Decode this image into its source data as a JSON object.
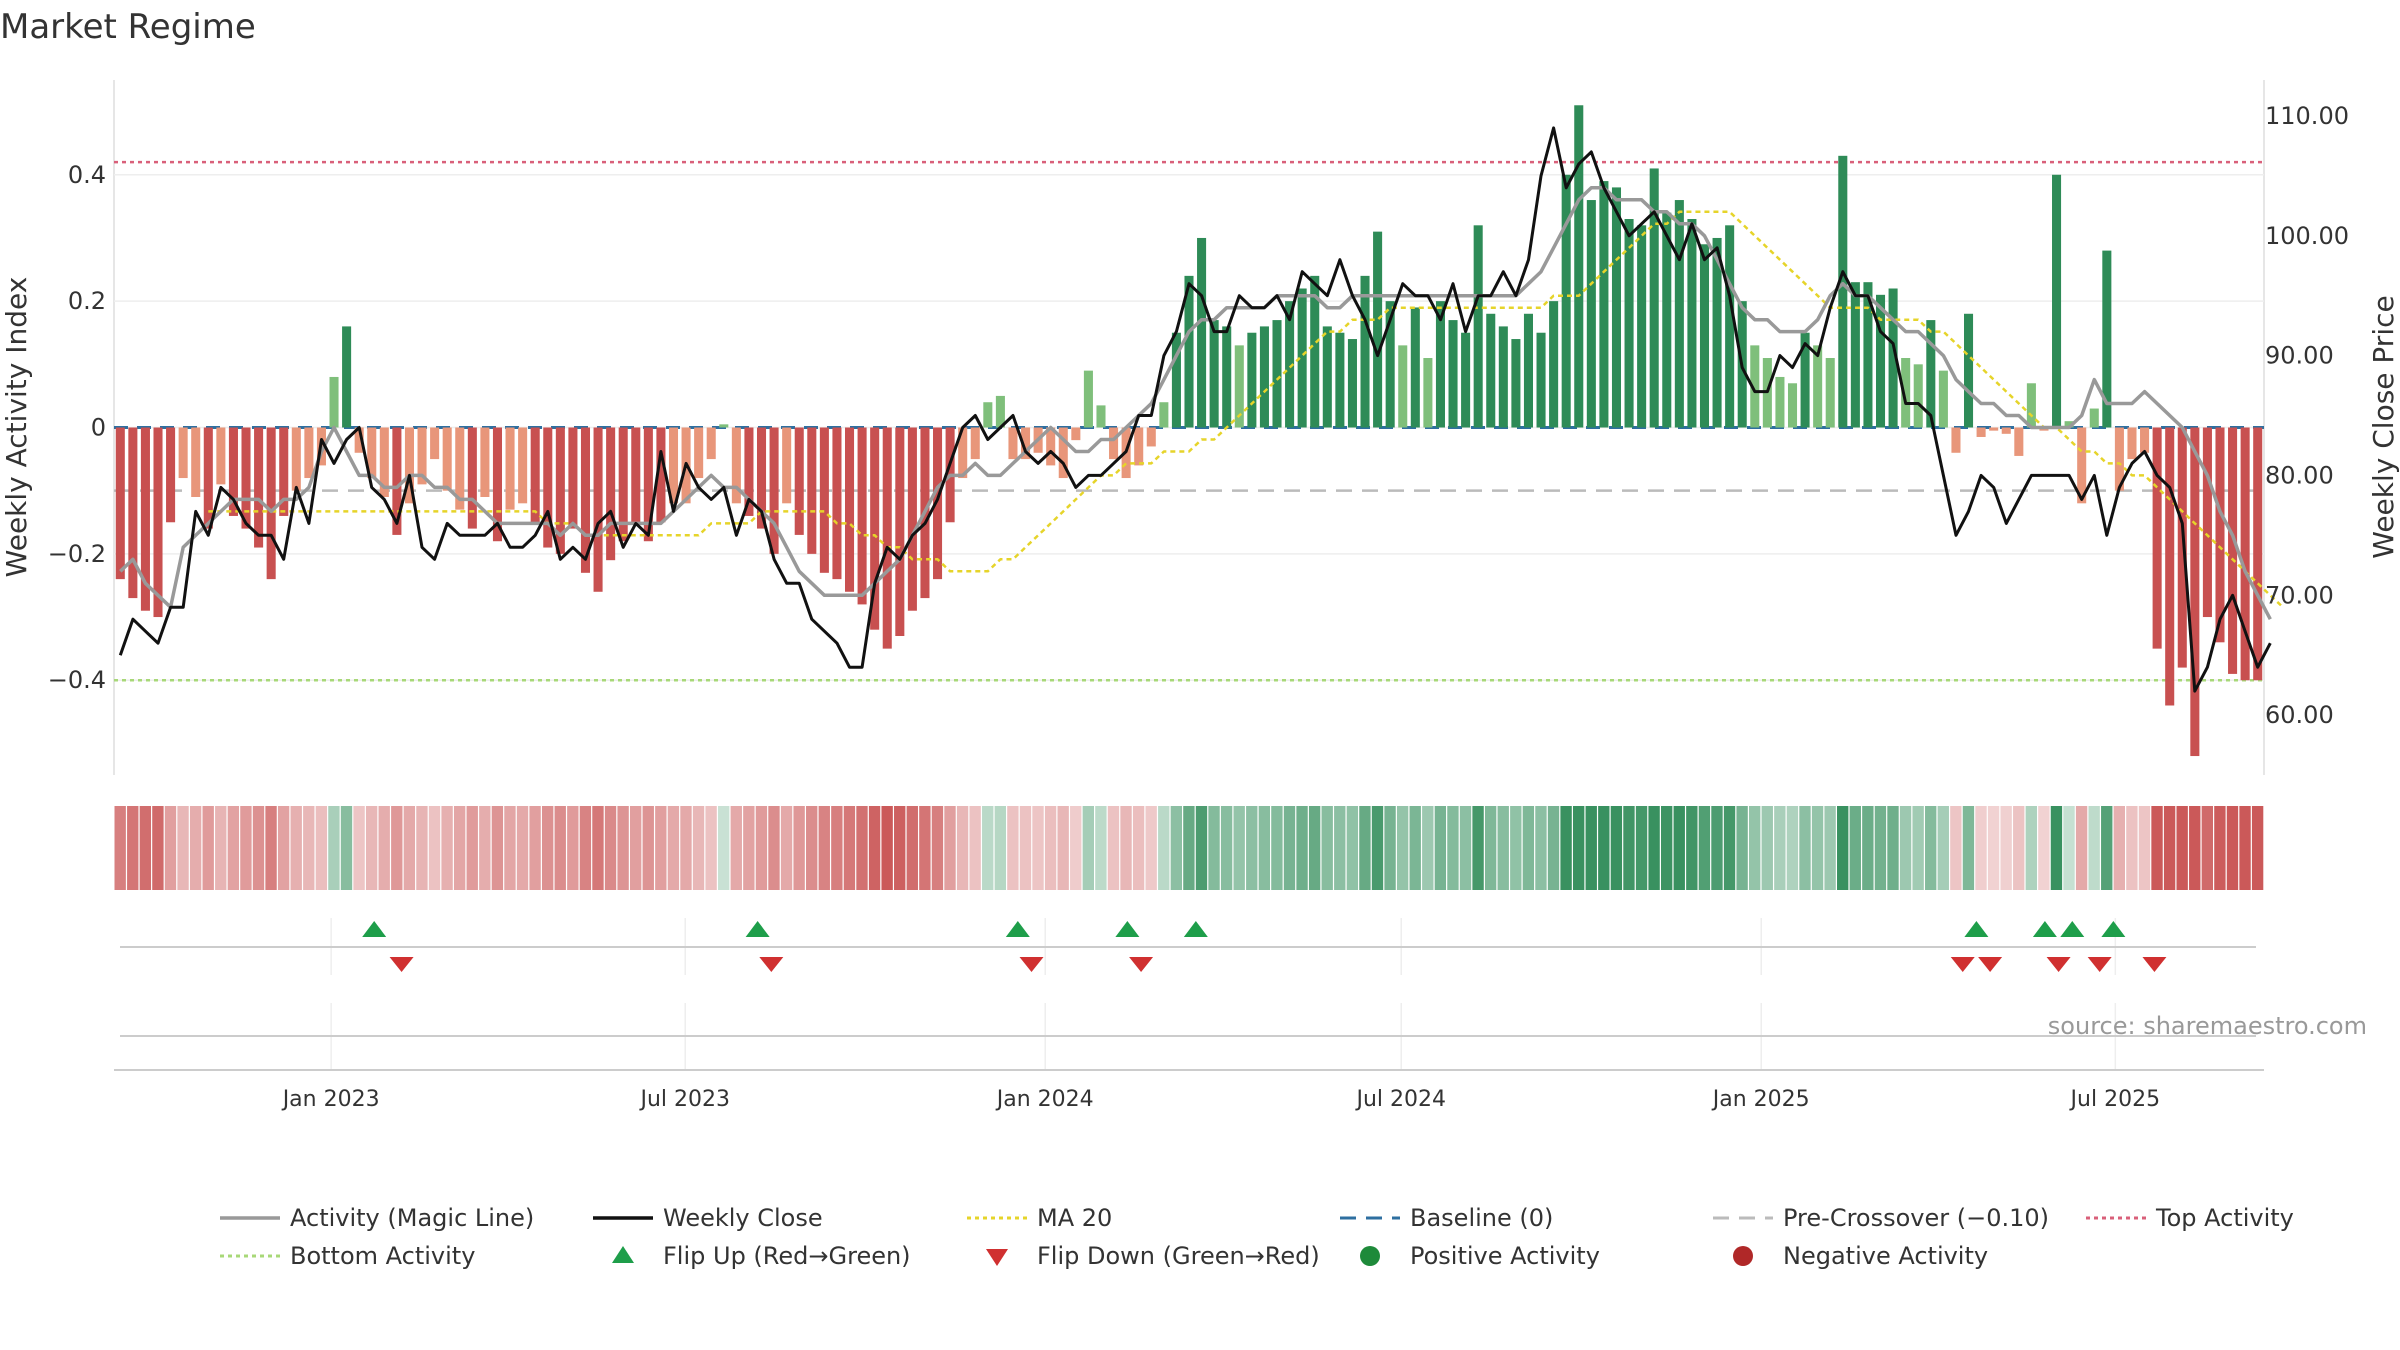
{
  "page": {
    "title": "Market Regime",
    "source": "source: sharemaestro.com"
  },
  "colors": {
    "pos_dark": "#2e8b57",
    "pos_light": "#7fbf7b",
    "neg_dark": "#c85050",
    "neg_light": "#e8967a",
    "magic_line": "#999999",
    "close_line": "#111111",
    "ma20": "#e6d42a",
    "baseline": "#2e6fa0",
    "pre_crossover": "#bbbbbb",
    "top_activity": "#d9607a",
    "bottom_activity": "#a8d878",
    "flip_up": "#1e9e4a",
    "flip_down": "#d03030",
    "positive_dot": "#1e8a3a",
    "negative_dot": "#b02828"
  },
  "legend": [
    {
      "key": "magic",
      "label": "Activity (Magic Line)",
      "symbol": "line",
      "color": "#999999"
    },
    {
      "key": "close",
      "label": "Weekly Close",
      "symbol": "line",
      "color": "#111111"
    },
    {
      "key": "ma20",
      "label": "MA 20",
      "symbol": "dotted",
      "color": "#e6d42a"
    },
    {
      "key": "baseline",
      "label": "Baseline (0)",
      "symbol": "dashed",
      "color": "#2e6fa0"
    },
    {
      "key": "pre",
      "label": "Pre-Crossover (−0.10)",
      "symbol": "dashed",
      "color": "#bbbbbb"
    },
    {
      "key": "top",
      "label": "Top Activity",
      "symbol": "dotted",
      "color": "#d9607a"
    },
    {
      "key": "bottom",
      "label": "Bottom Activity",
      "symbol": "dotted",
      "color": "#a8d878"
    },
    {
      "key": "flipup",
      "label": "Flip Up (Red→Green)",
      "symbol": "tri-up",
      "color": "#1e9e4a"
    },
    {
      "key": "flipdown",
      "label": "Flip Down (Green→Red)",
      "symbol": "tri-down",
      "color": "#d03030"
    },
    {
      "key": "posdot",
      "label": "Positive Activity",
      "symbol": "dot",
      "color": "#1e8a3a"
    },
    {
      "key": "negdot",
      "label": "Negative Activity",
      "symbol": "dot",
      "color": "#b02828"
    }
  ],
  "chart_data": {
    "type": "bar",
    "title": "Market Regime",
    "xlabel": "",
    "ylabel": "Weekly Activity Index",
    "y2label": "Weekly Close Price",
    "x_start": "2022-09-12",
    "x_end": "2025-09-15",
    "x_step_days": 7,
    "x_ticks": [
      {
        "date": "2023-01-01",
        "label": "Jan 2023"
      },
      {
        "date": "2023-07-01",
        "label": "Jul 2023"
      },
      {
        "date": "2024-01-01",
        "label": "Jan 2024"
      },
      {
        "date": "2024-07-01",
        "label": "Jul 2024"
      },
      {
        "date": "2025-01-01",
        "label": "Jan 2025"
      },
      {
        "date": "2025-07-01",
        "label": "Jul 2025"
      }
    ],
    "ylim": [
      -0.55,
      0.55
    ],
    "yticks": [
      {
        "v": 0.4,
        "label": "0.4"
      },
      {
        "v": 0.2,
        "label": "0.2"
      },
      {
        "v": 0,
        "label": "0"
      },
      {
        "v": -0.2,
        "label": "−0.2"
      },
      {
        "v": -0.4,
        "label": "−0.4"
      }
    ],
    "y2lim": [
      55,
      113
    ],
    "y2ticks": [
      {
        "v": 110,
        "label": "110.00"
      },
      {
        "v": 100,
        "label": "100.00"
      },
      {
        "v": 90,
        "label": "90.00"
      },
      {
        "v": 80,
        "label": "80.00"
      },
      {
        "v": 70,
        "label": "70.00"
      },
      {
        "v": 60,
        "label": "60.00"
      }
    ],
    "reference_lines": {
      "baseline": 0,
      "pre_crossover": -0.1,
      "top_activity": 0.42,
      "bottom_activity": -0.4
    },
    "series": [
      {
        "name": "Weekly Activity Index",
        "kind": "bar",
        "values": [
          -0.24,
          -0.27,
          -0.29,
          -0.3,
          -0.15,
          -0.08,
          -0.11,
          -0.16,
          -0.09,
          -0.14,
          -0.16,
          -0.19,
          -0.24,
          -0.14,
          -0.1,
          -0.08,
          -0.06,
          0.08,
          0.16,
          -0.04,
          -0.08,
          -0.11,
          -0.17,
          -0.12,
          -0.09,
          -0.05,
          -0.1,
          -0.13,
          -0.16,
          -0.11,
          -0.18,
          -0.13,
          -0.12,
          -0.15,
          -0.19,
          -0.2,
          -0.16,
          -0.23,
          -0.26,
          -0.21,
          -0.18,
          -0.15,
          -0.18,
          -0.15,
          -0.12,
          -0.12,
          -0.08,
          -0.05,
          0.005,
          -0.12,
          -0.14,
          -0.16,
          -0.2,
          -0.12,
          -0.17,
          -0.2,
          -0.23,
          -0.24,
          -0.26,
          -0.28,
          -0.32,
          -0.35,
          -0.33,
          -0.29,
          -0.27,
          -0.24,
          -0.15,
          -0.08,
          -0.05,
          0.04,
          0.05,
          -0.05,
          -0.05,
          -0.04,
          -0.06,
          -0.08,
          -0.02,
          0.09,
          0.035,
          -0.05,
          -0.08,
          -0.06,
          -0.03,
          0.04,
          0.15,
          0.24,
          0.3,
          0.17,
          0.16,
          0.13,
          0.15,
          0.16,
          0.17,
          0.2,
          0.22,
          0.24,
          0.16,
          0.15,
          0.14,
          0.24,
          0.31,
          0.2,
          0.13,
          0.19,
          0.11,
          0.2,
          0.17,
          0.15,
          0.32,
          0.18,
          0.16,
          0.14,
          0.18,
          0.15,
          0.2,
          0.4,
          0.51,
          0.36,
          0.39,
          0.38,
          0.33,
          0.32,
          0.41,
          0.34,
          0.36,
          0.33,
          0.29,
          0.3,
          0.32,
          0.2,
          0.13,
          0.11,
          0.08,
          0.07,
          0.15,
          0.13,
          0.11,
          0.43,
          0.23,
          0.23,
          0.21,
          0.22,
          0.11,
          0.1,
          0.17,
          0.09,
          -0.04,
          0.18,
          -0.015,
          -0.005,
          -0.01,
          -0.045,
          0.07,
          -0.005,
          0.4,
          0.01,
          -0.12,
          0.03,
          0.28,
          -0.1,
          -0.05,
          -0.04,
          -0.35,
          -0.44,
          -0.38,
          -0.52,
          -0.3,
          -0.34,
          -0.39,
          -0.4,
          -0.4
        ],
        "color_rule": "dark when |value| large"
      },
      {
        "name": "Weekly Close",
        "kind": "line",
        "axis": "y2",
        "color": "#111111",
        "values": [
          65,
          68,
          67,
          66,
          69,
          69,
          77,
          75,
          79,
          78,
          76,
          75,
          75,
          73,
          79,
          76,
          83,
          81,
          83,
          84,
          79,
          78,
          76,
          80,
          74,
          73,
          76,
          75,
          75,
          75,
          76,
          74,
          74,
          75,
          77,
          73,
          74,
          73,
          76,
          77,
          74,
          76,
          75,
          82,
          77,
          81,
          79,
          78,
          79,
          75,
          78,
          77,
          73,
          71,
          71,
          68,
          67,
          66,
          64,
          64,
          71,
          74,
          73,
          75,
          76,
          78,
          81,
          84,
          85,
          83,
          84,
          85,
          82,
          81,
          82,
          81,
          79,
          80,
          80,
          81,
          82,
          85,
          85,
          90,
          92,
          96,
          95,
          92,
          92,
          95,
          94,
          94,
          95,
          93,
          97,
          96,
          95,
          98,
          95,
          93,
          90,
          93,
          96,
          95,
          95,
          93,
          96,
          92,
          95,
          95,
          97,
          95,
          98,
          105,
          109,
          104,
          106,
          107,
          104,
          102,
          100,
          101,
          102,
          100,
          98,
          101,
          98,
          99,
          95,
          89,
          87,
          87,
          90,
          89,
          91,
          90,
          94,
          97,
          95,
          95,
          92,
          91,
          86,
          86,
          85,
          80,
          75,
          77,
          80,
          79,
          76,
          78,
          80,
          80,
          80,
          80,
          78,
          80,
          75,
          79,
          81,
          82,
          80,
          79,
          76,
          62,
          64,
          68,
          70,
          67,
          64,
          66
        ],
        "start_index": 0
      },
      {
        "name": "Activity (Magic Line)",
        "kind": "line",
        "axis": "y2",
        "color": "#999999",
        "values": [
          72,
          73,
          71,
          70,
          69,
          74,
          75,
          76,
          77,
          78,
          78,
          78,
          77,
          78,
          78,
          79,
          82,
          84,
          82,
          80,
          80,
          79,
          79,
          80,
          80,
          79,
          79,
          78,
          78,
          77,
          76,
          76,
          76,
          76,
          76,
          75,
          76,
          75,
          75,
          76,
          76,
          76,
          76,
          76,
          77,
          78,
          79,
          80,
          79,
          79,
          78,
          77,
          76,
          74,
          72,
          71,
          70,
          70,
          70,
          70,
          71,
          72,
          73,
          75,
          77,
          79,
          80,
          80,
          81,
          80,
          80,
          81,
          82,
          83,
          84,
          83,
          82,
          82,
          83,
          83,
          84,
          85,
          86,
          88,
          90,
          92,
          93,
          93,
          94,
          94,
          94,
          94,
          95,
          95,
          95,
          95,
          94,
          94,
          95,
          95,
          95,
          95,
          95,
          95,
          95,
          95,
          95,
          95,
          95,
          95,
          95,
          95,
          96,
          97,
          99,
          101,
          103,
          104,
          104,
          103,
          103,
          103,
          102,
          102,
          101,
          101,
          100,
          98,
          96,
          94,
          93,
          93,
          92,
          92,
          92,
          93,
          95,
          96,
          95,
          95,
          94,
          93,
          92,
          92,
          91,
          90,
          88,
          87,
          86,
          86,
          85,
          85,
          84,
          84,
          84,
          84,
          85,
          88,
          86,
          86,
          86,
          87,
          86,
          85,
          84,
          82,
          80,
          77,
          75,
          72,
          70,
          68
        ],
        "start_index": 0
      },
      {
        "name": "MA 20",
        "kind": "line",
        "axis": "y2",
        "color": "#e6d42a",
        "values": [
          77,
          77,
          77,
          77,
          77,
          77,
          77,
          77,
          77,
          77,
          77,
          77,
          77,
          77,
          77,
          77,
          77,
          77,
          77,
          77,
          77,
          77,
          77,
          77,
          77,
          77,
          77,
          76,
          76,
          76,
          75,
          75,
          75,
          75,
          75,
          75,
          75,
          75,
          75,
          75,
          76,
          76,
          76,
          76,
          77,
          77,
          77,
          77,
          77,
          77,
          76,
          76,
          75,
          75,
          74,
          74,
          73,
          73,
          73,
          72,
          72,
          72,
          72,
          73,
          73,
          74,
          75,
          76,
          77,
          78,
          79,
          80,
          80,
          81,
          81,
          81,
          82,
          82,
          82,
          83,
          83,
          84,
          85,
          86,
          87,
          88,
          89,
          90,
          91,
          92,
          92,
          93,
          93,
          93,
          94,
          94,
          94,
          94,
          94,
          94,
          94,
          94,
          94,
          94,
          94,
          94,
          94,
          95,
          95,
          95,
          96,
          97,
          98,
          99,
          100,
          101,
          101,
          102,
          102,
          102,
          102,
          102,
          101,
          100,
          99,
          98,
          97,
          96,
          95,
          94,
          94,
          94,
          94,
          93,
          93,
          93,
          93,
          92,
          92,
          91,
          90,
          89,
          88,
          87,
          86,
          85,
          84,
          84,
          83,
          82,
          82,
          81,
          81,
          80,
          80,
          79,
          78,
          77,
          76,
          75,
          74,
          73,
          72,
          71,
          70,
          69
        ],
        "start_index": 7
      }
    ],
    "flip_up": [
      "2023-01-23",
      "2023-08-07",
      "2023-12-18",
      "2024-02-12",
      "2024-03-18",
      "2025-04-21",
      "2025-05-26",
      "2025-06-09",
      "2025-06-30"
    ],
    "flip_down": [
      "2023-02-06",
      "2023-08-14",
      "2023-12-25",
      "2024-02-19",
      "2025-04-14",
      "2025-04-28",
      "2025-06-02",
      "2025-06-23",
      "2025-07-21"
    ]
  }
}
